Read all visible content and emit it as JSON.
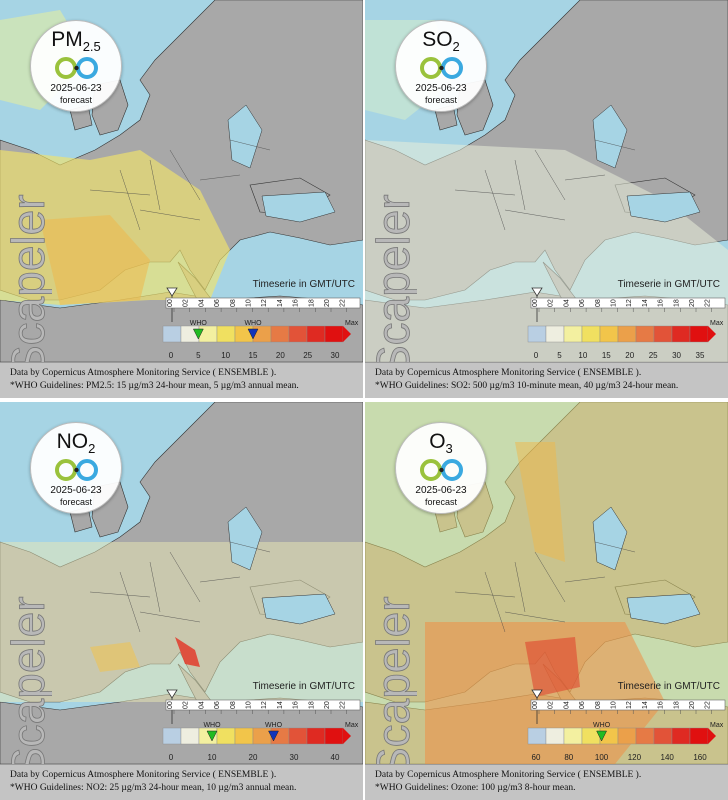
{
  "common": {
    "date": "2025-06-23",
    "forecast_label": "forecast",
    "watermark": "Scapeler",
    "timeserie_label": "Timeserie in GMT/UTC",
    "time_ticks": [
      "00",
      "02",
      "04",
      "06",
      "08",
      "10",
      "12",
      "14",
      "16",
      "18",
      "20",
      "22"
    ],
    "who_label": "WHO",
    "max_label": "Max",
    "credit": "Data by Copernicus Atmosphere Monitoring Service ( ENSEMBLE )."
  },
  "panels": [
    {
      "pollutant": "PM",
      "pollutant_sub": "2.5",
      "legend_ticks": [
        "0",
        "5",
        "10",
        "15",
        "20",
        "25",
        "30"
      ],
      "who_markers": [
        {
          "value": "5",
          "color": "#22bb22"
        },
        {
          "value": "15",
          "color": "#1133bb"
        }
      ],
      "guideline": "*WHO Guidelines: PM2.5: 15 µg/m3 24-hour mean, 5 µg/m3 annual mean."
    },
    {
      "pollutant": "SO",
      "pollutant_sub": "2",
      "legend_ticks": [
        "0",
        "5",
        "10",
        "15",
        "20",
        "25",
        "30",
        "35"
      ],
      "who_markers": [],
      "guideline": "*WHO Guidelines: SO2: 500 µg/m3 10-minute mean, 40 µg/m3 24-hour mean."
    },
    {
      "pollutant": "NO",
      "pollutant_sub": "2",
      "legend_ticks": [
        "0",
        "10",
        "20",
        "30",
        "40"
      ],
      "who_markers": [
        {
          "value": "10",
          "color": "#22bb22"
        },
        {
          "value": "25",
          "color": "#1133bb"
        }
      ],
      "guideline": "*WHO Guidelines: NO2: 25 µg/m3 24-hour mean, 10 µg/m3 annual mean."
    },
    {
      "pollutant": "O",
      "pollutant_sub": "3",
      "legend_ticks": [
        "60",
        "80",
        "100",
        "120",
        "140",
        "160"
      ],
      "who_markers": [
        {
          "value": "100",
          "color": "#22bb22"
        }
      ],
      "guideline": "*WHO Guidelines: Ozone: 100 µg/m3 8-hour mean."
    }
  ],
  "colors": {
    "sea": "#a6d4e4",
    "land": "#a8a8a8",
    "scale": [
      "#b9cfe3",
      "#eeeee0",
      "#f3f0a0",
      "#f0e060",
      "#f2c54a",
      "#eba04a",
      "#e67a45",
      "#e25338",
      "#df2a22",
      "#e01010"
    ]
  }
}
